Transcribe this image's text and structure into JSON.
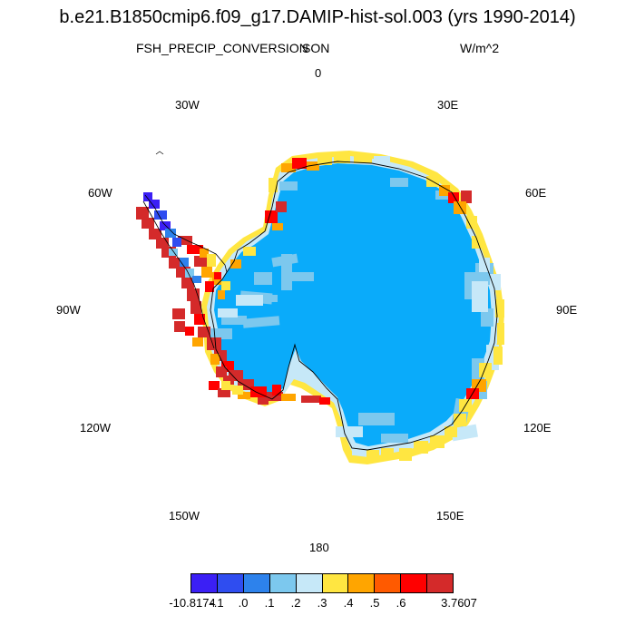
{
  "title": "b.e21.B1850cmip6.f09_g17.DAMIP-hist-sol.003 (yrs 1990-2014)",
  "variable": "FSH_PRECIP_CONVERSION",
  "season": "SON",
  "units": "W/m^2",
  "longitude_labels": {
    "l0": "0",
    "l30e": "30E",
    "l60e": "60E",
    "l90e": "90E",
    "l120e": "120E",
    "l150e": "150E",
    "l180": "180",
    "l150w": "150W",
    "l120w": "120W",
    "l90w": "90W",
    "l60w": "60W",
    "l30w": "30W"
  },
  "colors": {
    "interior": "#0aabfa",
    "level_03": "#c6e8f8",
    "level_02": "#7cc8ee",
    "level_04": "#ffe641",
    "level_05": "#ffa500",
    "level_06": "#ff5a00",
    "level_07": "#ff0000",
    "level_08": "#d42a2a",
    "negative": "#3b1ff5"
  },
  "colorbar": {
    "colors": [
      "#3b1ff5",
      "#2f4df0",
      "#2d82ec",
      "#7cc8ee",
      "#c6e8f8",
      "#ffe641",
      "#ffa500",
      "#ff5a00",
      "#ff0000",
      "#d42a2a"
    ],
    "labels": [
      "-10.8174",
      "-.1",
      ".0",
      ".1",
      ".2",
      ".3",
      ".4",
      ".5",
      ".6",
      "3.7607"
    ]
  }
}
